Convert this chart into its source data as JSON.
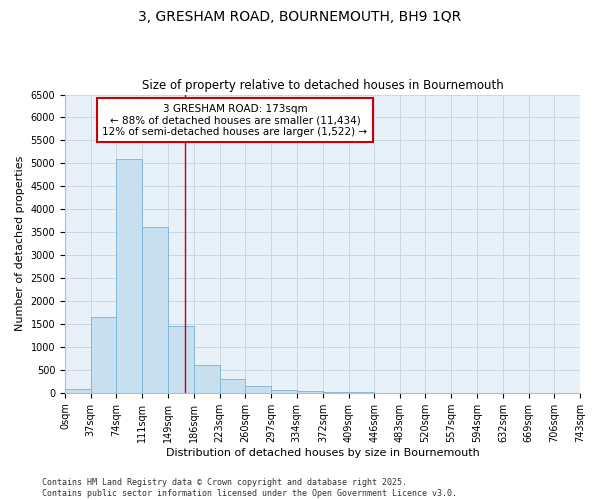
{
  "title": "3, GRESHAM ROAD, BOURNEMOUTH, BH9 1QR",
  "subtitle": "Size of property relative to detached houses in Bournemouth",
  "xlabel": "Distribution of detached houses by size in Bournemouth",
  "ylabel": "Number of detached properties",
  "bar_edges": [
    0,
    37,
    74,
    111,
    149,
    186,
    223,
    260,
    297,
    334,
    372,
    409,
    446,
    483,
    520,
    557,
    594,
    632,
    669,
    706,
    743
  ],
  "bar_labels": [
    "0sqm",
    "37sqm",
    "74sqm",
    "111sqm",
    "149sqm",
    "186sqm",
    "223sqm",
    "260sqm",
    "297sqm",
    "334sqm",
    "372sqm",
    "409sqm",
    "446sqm",
    "483sqm",
    "520sqm",
    "557sqm",
    "594sqm",
    "632sqm",
    "669sqm",
    "706sqm",
    "743sqm"
  ],
  "bar_heights": [
    75,
    1650,
    5100,
    3620,
    1450,
    610,
    310,
    140,
    65,
    30,
    10,
    5,
    2,
    1,
    0,
    0,
    0,
    0,
    0,
    0
  ],
  "bar_color": "#c8dff0",
  "bar_edgecolor": "#7ab3d4",
  "property_line_x": 173,
  "property_label": "3 GRESHAM ROAD: 173sqm",
  "annotation_line1": "← 88% of detached houses are smaller (11,434)",
  "annotation_line2": "12% of semi-detached houses are larger (1,522) →",
  "annotation_box_color": "#ffffff",
  "annotation_box_edgecolor": "#cc0000",
  "vline_color": "#cc0000",
  "ylim": [
    0,
    6500
  ],
  "yticks": [
    0,
    500,
    1000,
    1500,
    2000,
    2500,
    3000,
    3500,
    4000,
    4500,
    5000,
    5500,
    6000,
    6500
  ],
  "grid_color": "#c8d8e8",
  "plot_bg_color": "#e8f0f8",
  "fig_bg_color": "#ffffff",
  "footer_line1": "Contains HM Land Registry data © Crown copyright and database right 2025.",
  "footer_line2": "Contains public sector information licensed under the Open Government Licence v3.0.",
  "title_fontsize": 10,
  "subtitle_fontsize": 8.5,
  "axis_label_fontsize": 8,
  "tick_fontsize": 7,
  "annotation_fontsize": 7.5,
  "footer_fontsize": 6
}
